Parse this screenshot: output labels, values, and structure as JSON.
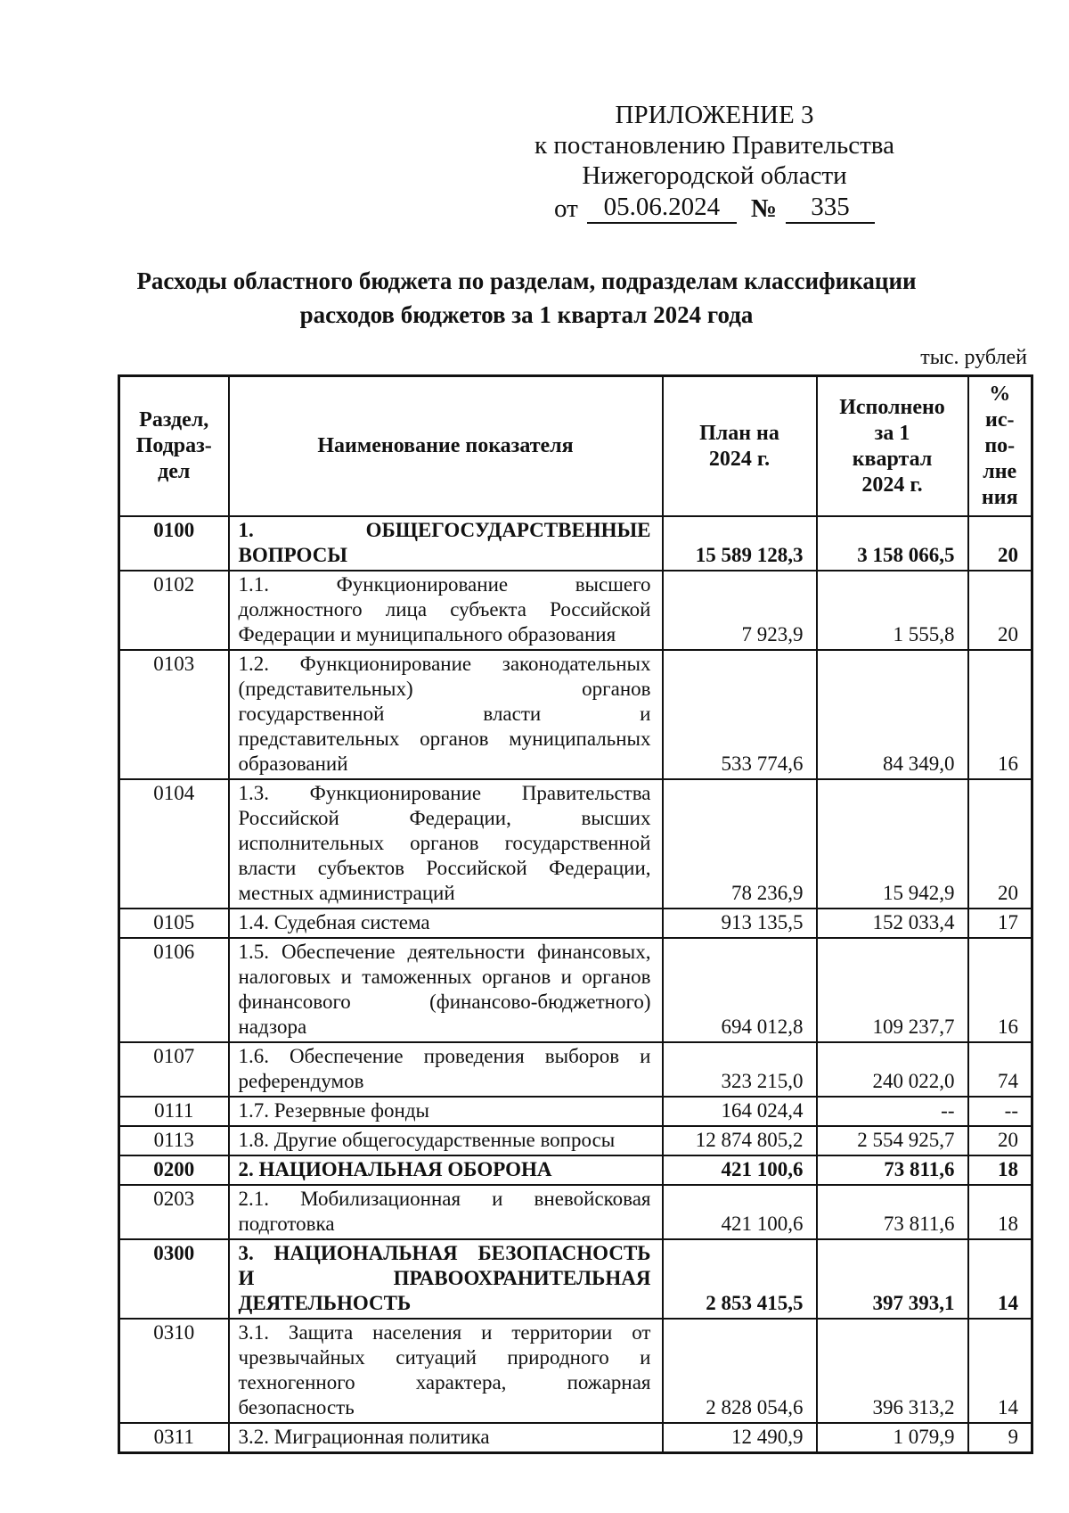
{
  "header": {
    "appendix": "ПРИЛОЖЕНИЕ 3",
    "to_line1": "к постановлению Правительства",
    "to_line2": "Нижегородской области",
    "from_label": "от",
    "date": "05.06.2024",
    "number_sign": "№",
    "number": "335"
  },
  "title": "Расходы областного бюджета по разделам, подразделам классификации\nрасходов бюджетов за 1 квартал 2024 года",
  "units_note": "тыс. рублей",
  "table": {
    "columns": [
      {
        "label": "Раздел,\nПодраз-\nдел"
      },
      {
        "label": "Наименование показателя"
      },
      {
        "label": "План на\n2024 г."
      },
      {
        "label": "Исполнено\nза 1\nквартал\n2024 г."
      },
      {
        "label": "%\nис-\nпо-\nлне\nния"
      }
    ],
    "rows": [
      {
        "code": "0100",
        "name": "1. ОБЩЕГОСУДАРСТВЕННЫЕ\nВОПРОСЫ",
        "plan": "15 589 128,3",
        "executed": "3 158 066,5",
        "percent": "20",
        "bold": true
      },
      {
        "code": "0102",
        "name": "1.1. Функционирование высшего\nдолжностного лица субъекта Российской\nФедерации и муниципального образования",
        "plan": "7 923,9",
        "executed": "1 555,8",
        "percent": "20",
        "bold": false
      },
      {
        "code": "0103",
        "name": "1.2. Функционирование законодательных\n(представительных) органов\nгосударственной власти и\nпредставительных органов муниципальных\nобразований",
        "plan": "533 774,6",
        "executed": "84 349,0",
        "percent": "16",
        "bold": false
      },
      {
        "code": "0104",
        "name": "1.3. Функционирование Правительства\nРоссийской Федерации, высших\nисполнительных органов государственной\nвласти субъектов Российской Федерации,\nместных администраций",
        "plan": "78 236,9",
        "executed": "15 942,9",
        "percent": "20",
        "bold": false
      },
      {
        "code": "0105",
        "name": "1.4. Судебная система",
        "plan": "913 135,5",
        "executed": "152 033,4",
        "percent": "17",
        "bold": false
      },
      {
        "code": "0106",
        "name": "1.5. Обеспечение деятельности финансовых,\nналоговых и таможенных органов и органов\nфинансового (финансово-бюджетного)\nнадзора",
        "plan": "694 012,8",
        "executed": "109 237,7",
        "percent": "16",
        "bold": false
      },
      {
        "code": "0107",
        "name": "1.6. Обеспечение проведения выборов и\nреферендумов",
        "plan": "323 215,0",
        "executed": "240 022,0",
        "percent": "74",
        "bold": false
      },
      {
        "code": "0111",
        "name": "1.7. Резервные фонды",
        "plan": "164 024,4",
        "executed": "--",
        "percent": "--",
        "bold": false
      },
      {
        "code": "0113",
        "name": "1.8. Другие общегосударственные вопросы",
        "plan": "12 874 805,2",
        "executed": "2 554 925,7",
        "percent": "20",
        "bold": false
      },
      {
        "code": "0200",
        "name": "2. НАЦИОНАЛЬНАЯ ОБОРОНА",
        "plan": "421 100,6",
        "executed": "73 811,6",
        "percent": "18",
        "bold": true
      },
      {
        "code": "0203",
        "name": "2.1. Мобилизационная и вневойсковая\nподготовка",
        "plan": "421 100,6",
        "executed": "73 811,6",
        "percent": "18",
        "bold": false
      },
      {
        "code": "0300",
        "name": "3. НАЦИОНАЛЬНАЯ БЕЗОПАСНОСТЬ\nИ ПРАВООХРАНИТЕЛЬНАЯ\nДЕЯТЕЛЬНОСТЬ",
        "plan": "2 853 415,5",
        "executed": "397 393,1",
        "percent": "14",
        "bold": true
      },
      {
        "code": "0310",
        "name": "3.1. Защита населения и территории от\nчрезвычайных ситуаций природного и\nтехногенного характера, пожарная\nбезопасность",
        "plan": "2 828 054,6",
        "executed": "396 313,2",
        "percent": "14",
        "bold": false
      },
      {
        "code": "0311",
        "name": "3.2. Миграционная политика",
        "plan": "12 490,9",
        "executed": "1 079,9",
        "percent": "9",
        "bold": false
      }
    ]
  }
}
